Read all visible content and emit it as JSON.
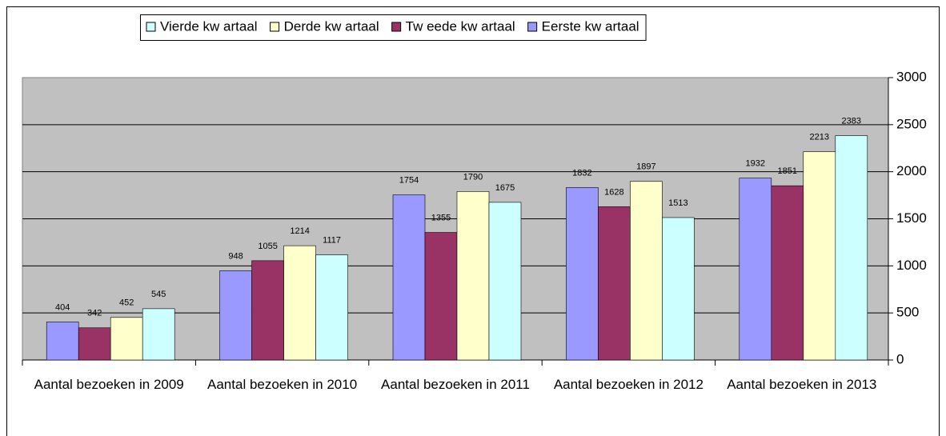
{
  "chart_data": {
    "type": "bar",
    "categories": [
      "Aantal bezoeken in 2009",
      "Aantal bezoeken in 2010",
      "Aantal bezoeken in 2011",
      "Aantal bezoeken in 2012",
      "Aantal bezoeken in 2013"
    ],
    "series": [
      {
        "name": "Eerste kw artaal",
        "color": "#9999ff",
        "values": [
          404,
          948,
          1754,
          1832,
          1932
        ]
      },
      {
        "name": "Tw eede kw artaal",
        "color": "#993366",
        "values": [
          342,
          1055,
          1355,
          1628,
          1851
        ]
      },
      {
        "name": "Derde kw artaal",
        "color": "#ffffcc",
        "values": [
          452,
          1214,
          1790,
          1897,
          2213
        ]
      },
      {
        "name": "Vierde kw artaal",
        "color": "#ccffff",
        "values": [
          545,
          1117,
          1675,
          1513,
          2383
        ]
      }
    ],
    "ylim": [
      0,
      3000
    ],
    "yticks": [
      0,
      500,
      1000,
      1500,
      2000,
      2500,
      3000
    ],
    "grid": true,
    "legend": "top",
    "background": "#c0c0c0"
  }
}
